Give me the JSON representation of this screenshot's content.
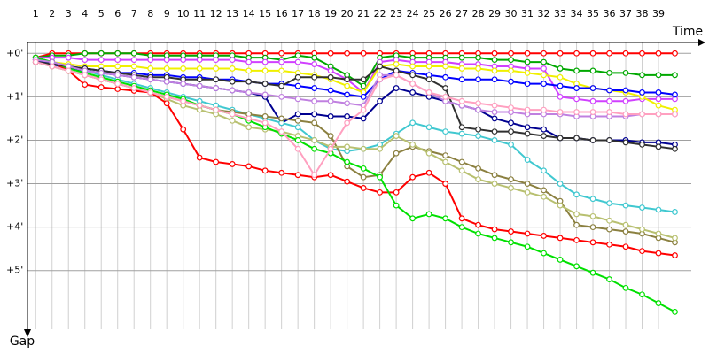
{
  "chart_data": {
    "type": "line",
    "x_label": "Time",
    "y_label": "Gap",
    "y_inverted": true,
    "grid": true,
    "markers": true,
    "x": [
      1,
      2,
      3,
      4,
      5,
      6,
      7,
      8,
      9,
      10,
      11,
      12,
      13,
      14,
      15,
      16,
      17,
      18,
      19,
      20,
      21,
      22,
      23,
      24,
      25,
      26,
      27,
      28,
      29,
      30,
      31,
      32,
      33,
      34,
      35,
      36,
      37,
      38,
      39,
      40
    ],
    "xlim": [
      0.5,
      41
    ],
    "xticks": [
      1,
      2,
      3,
      4,
      5,
      6,
      7,
      8,
      9,
      10,
      11,
      12,
      13,
      14,
      15,
      16,
      17,
      18,
      19,
      20,
      21,
      22,
      23,
      24,
      25,
      26,
      27,
      28,
      29,
      30,
      31,
      32,
      33,
      34,
      35,
      36,
      37,
      38,
      39
    ],
    "ylim": [
      -0.25,
      6.35
    ],
    "yticks": [
      {
        "value": 0,
        "label": "+0'"
      },
      {
        "value": 1,
        "label": "+1'"
      },
      {
        "value": 2,
        "label": "+2'"
      },
      {
        "value": 3,
        "label": "+3'"
      },
      {
        "value": 4,
        "label": "+4'"
      },
      {
        "value": 5,
        "label": "+5'"
      }
    ],
    "series": [
      {
        "color": "#ff0000",
        "values": [
          0.1,
          0,
          0,
          0,
          0,
          0,
          0,
          0,
          0,
          0,
          0,
          0,
          0,
          0,
          0,
          0,
          0,
          0,
          0,
          0,
          0,
          0,
          0,
          0,
          0,
          0,
          0,
          0,
          0,
          0,
          0,
          0,
          0,
          0,
          0,
          0,
          0,
          0,
          0,
          0
        ]
      },
      {
        "color": "#00a800",
        "values": [
          0.1,
          0.05,
          0.05,
          0,
          0,
          0,
          0,
          0.05,
          0.05,
          0.05,
          0.05,
          0.05,
          0.05,
          0.1,
          0.1,
          0.15,
          0.05,
          0.1,
          0.3,
          0.5,
          0.75,
          0.1,
          0.05,
          0.1,
          0.1,
          0.1,
          0.1,
          0.1,
          0.15,
          0.15,
          0.2,
          0.2,
          0.35,
          0.4,
          0.4,
          0.45,
          0.45,
          0.5,
          0.5,
          0.5
        ]
      },
      {
        "color": "#d040ff",
        "values": [
          0.1,
          0.1,
          0.1,
          0.15,
          0.15,
          0.15,
          0.15,
          0.15,
          0.15,
          0.15,
          0.15,
          0.15,
          0.15,
          0.2,
          0.2,
          0.2,
          0.2,
          0.25,
          0.4,
          0.6,
          0.9,
          0.2,
          0.15,
          0.2,
          0.2,
          0.2,
          0.25,
          0.25,
          0.3,
          0.3,
          0.35,
          0.35,
          1.0,
          1.05,
          1.1,
          1.1,
          1.1,
          1.05,
          1.05,
          1.05
        ]
      },
      {
        "color": "#f0f000",
        "values": [
          0.15,
          0.2,
          0.25,
          0.3,
          0.3,
          0.3,
          0.3,
          0.35,
          0.35,
          0.35,
          0.35,
          0.35,
          0.35,
          0.4,
          0.4,
          0.4,
          0.45,
          0.5,
          0.6,
          0.75,
          0.9,
          0.3,
          0.25,
          0.3,
          0.3,
          0.3,
          0.35,
          0.35,
          0.4,
          0.4,
          0.45,
          0.5,
          0.55,
          0.7,
          0.8,
          0.85,
          0.9,
          1.0,
          1.2,
          1.3
        ]
      },
      {
        "color": "#0000ff",
        "values": [
          0.1,
          0.2,
          0.3,
          0.35,
          0.4,
          0.45,
          0.45,
          0.5,
          0.5,
          0.55,
          0.55,
          0.6,
          0.6,
          0.65,
          0.7,
          0.7,
          0.75,
          0.8,
          0.85,
          0.95,
          1.0,
          0.6,
          0.4,
          0.45,
          0.5,
          0.55,
          0.6,
          0.6,
          0.6,
          0.65,
          0.7,
          0.7,
          0.75,
          0.8,
          0.8,
          0.85,
          0.85,
          0.9,
          0.9,
          0.95
        ]
      },
      {
        "color": "#000090",
        "values": [
          0.15,
          0.25,
          0.35,
          0.4,
          0.45,
          0.5,
          0.55,
          0.6,
          0.65,
          0.7,
          0.75,
          0.8,
          0.85,
          0.9,
          1.0,
          1.6,
          1.4,
          1.4,
          1.45,
          1.45,
          1.5,
          1.1,
          0.8,
          0.9,
          1.0,
          1.1,
          1.2,
          1.3,
          1.5,
          1.6,
          1.7,
          1.75,
          1.95,
          1.95,
          2.0,
          2.0,
          2.0,
          2.05,
          2.05,
          2.1
        ]
      },
      {
        "color": "#40c8d0",
        "values": [
          0.1,
          0.2,
          0.3,
          0.4,
          0.5,
          0.6,
          0.7,
          0.8,
          0.9,
          1.0,
          1.1,
          1.2,
          1.3,
          1.4,
          1.5,
          1.6,
          1.7,
          2.0,
          2.2,
          2.25,
          2.2,
          2.1,
          1.85,
          1.6,
          1.7,
          1.8,
          1.85,
          1.9,
          2.0,
          2.1,
          2.45,
          2.7,
          3.0,
          3.25,
          3.35,
          3.45,
          3.5,
          3.55,
          3.6,
          3.65
        ]
      },
      {
        "color": "#8b8040",
        "values": [
          0.2,
          0.3,
          0.4,
          0.5,
          0.6,
          0.7,
          0.8,
          0.9,
          1.0,
          1.1,
          1.2,
          1.3,
          1.35,
          1.4,
          1.45,
          1.5,
          1.55,
          1.6,
          1.9,
          2.6,
          2.85,
          2.8,
          2.3,
          2.15,
          2.25,
          2.35,
          2.5,
          2.65,
          2.8,
          2.9,
          3.0,
          3.15,
          3.4,
          3.95,
          4.0,
          4.05,
          4.1,
          4.15,
          4.25,
          4.35
        ]
      },
      {
        "color": "#b8c070",
        "values": [
          0.2,
          0.3,
          0.4,
          0.5,
          0.6,
          0.7,
          0.8,
          0.9,
          1.05,
          1.2,
          1.3,
          1.4,
          1.55,
          1.7,
          1.75,
          1.8,
          1.9,
          2.0,
          2.15,
          2.15,
          2.2,
          2.2,
          1.9,
          2.1,
          2.3,
          2.5,
          2.7,
          2.9,
          3.0,
          3.1,
          3.2,
          3.3,
          3.5,
          3.7,
          3.75,
          3.85,
          3.95,
          4.05,
          4.15,
          4.25
        ]
      },
      {
        "color": "#ff0000",
        "values": [
          0.1,
          0.2,
          0.4,
          0.72,
          0.78,
          0.82,
          0.86,
          0.9,
          1.15,
          1.75,
          2.4,
          2.5,
          2.55,
          2.6,
          2.7,
          2.75,
          2.8,
          2.85,
          2.8,
          2.95,
          3.1,
          3.2,
          3.2,
          2.85,
          2.75,
          3.0,
          3.8,
          3.95,
          4.05,
          4.1,
          4.15,
          4.2,
          4.25,
          4.3,
          4.35,
          4.4,
          4.45,
          4.55,
          4.6,
          4.65
        ]
      },
      {
        "color": "#00e000",
        "values": [
          0.1,
          0.2,
          0.35,
          0.45,
          0.55,
          0.65,
          0.75,
          0.85,
          0.95,
          1.05,
          1.2,
          1.3,
          1.4,
          1.55,
          1.7,
          1.85,
          2.0,
          2.2,
          2.3,
          2.5,
          2.65,
          2.85,
          3.5,
          3.8,
          3.7,
          3.8,
          4.0,
          4.15,
          4.25,
          4.35,
          4.45,
          4.6,
          4.75,
          4.9,
          5.05,
          5.2,
          5.4,
          5.55,
          5.75,
          5.95
        ]
      },
      {
        "color": "#303030",
        "values": [
          0.2,
          0.25,
          0.3,
          0.35,
          0.4,
          0.45,
          0.5,
          0.55,
          0.55,
          0.6,
          0.6,
          0.6,
          0.65,
          0.65,
          0.7,
          0.75,
          0.55,
          0.55,
          0.55,
          0.6,
          0.6,
          0.3,
          0.4,
          0.5,
          0.6,
          0.8,
          1.7,
          1.75,
          1.8,
          1.8,
          1.85,
          1.9,
          1.95,
          1.95,
          2.0,
          2.0,
          2.05,
          2.1,
          2.15,
          2.2
        ]
      },
      {
        "color": "#c080e0",
        "values": [
          0.15,
          0.2,
          0.3,
          0.4,
          0.45,
          0.5,
          0.55,
          0.6,
          0.65,
          0.7,
          0.75,
          0.8,
          0.85,
          0.9,
          0.95,
          1.0,
          1.05,
          1.1,
          1.1,
          1.15,
          1.2,
          0.5,
          0.5,
          0.7,
          0.9,
          1.1,
          1.2,
          1.3,
          1.35,
          1.35,
          1.4,
          1.4,
          1.4,
          1.45,
          1.45,
          1.45,
          1.45,
          1.4,
          1.4,
          1.4
        ]
      },
      {
        "color": "#ffa0c0",
        "values": [
          0.2,
          0.3,
          0.4,
          0.5,
          0.6,
          0.7,
          0.8,
          0.9,
          1.0,
          1.1,
          1.2,
          1.3,
          1.4,
          1.5,
          1.6,
          1.8,
          2.2,
          2.8,
          2.2,
          1.6,
          1.3,
          0.6,
          0.5,
          0.7,
          0.9,
          1.0,
          1.1,
          1.15,
          1.2,
          1.25,
          1.3,
          1.3,
          1.35,
          1.35,
          1.35,
          1.35,
          1.4,
          1.4,
          1.4,
          1.4
        ]
      }
    ]
  }
}
